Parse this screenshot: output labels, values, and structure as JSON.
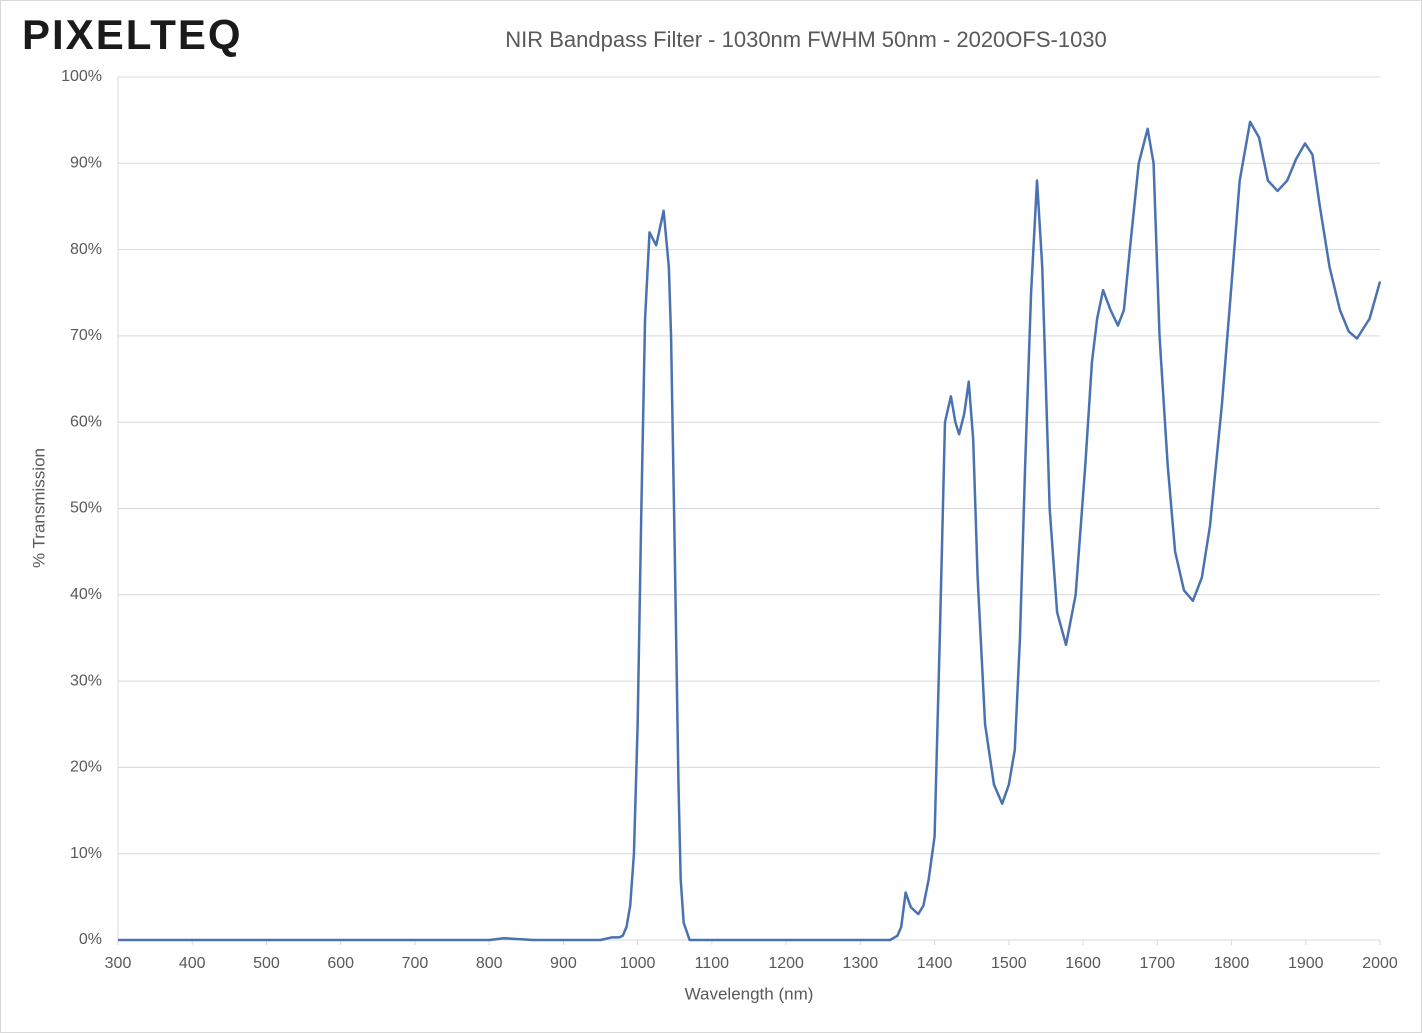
{
  "logo": "PIXELTEQ",
  "chart_data": {
    "type": "line",
    "title": "NIR Bandpass Filter - 1030nm FWHM 50nm - 2020OFS-1030",
    "x_label": "Wavelength (nm)",
    "y_label": "% Transmission",
    "color": "#4a72b0",
    "grid": true,
    "xlim": [
      300,
      2000
    ],
    "ylim": [
      0,
      100
    ],
    "xticks": [
      300,
      400,
      500,
      600,
      700,
      800,
      900,
      1000,
      1100,
      1200,
      1300,
      1400,
      1500,
      1600,
      1700,
      1800,
      1900,
      2000
    ],
    "yticks": [
      {
        "value": 0,
        "label": "0%"
      },
      {
        "value": 10,
        "label": "10%"
      },
      {
        "value": 20,
        "label": "20%"
      },
      {
        "value": 30,
        "label": "30%"
      },
      {
        "value": 40,
        "label": "40%"
      },
      {
        "value": 50,
        "label": "50%"
      },
      {
        "value": 60,
        "label": "60%"
      },
      {
        "value": 70,
        "label": "70%"
      },
      {
        "value": 80,
        "label": "80%"
      },
      {
        "value": 90,
        "label": "90%"
      },
      {
        "value": 100,
        "label": "100%"
      }
    ],
    "x": [
      300,
      500,
      700,
      800,
      820,
      860,
      950,
      965,
      975,
      980,
      985,
      990,
      995,
      1000,
      1005,
      1010,
      1016,
      1025,
      1035,
      1042,
      1045,
      1050,
      1055,
      1058,
      1062,
      1070,
      1340,
      1350,
      1355,
      1361,
      1368,
      1378,
      1385,
      1392,
      1400,
      1407,
      1414,
      1422,
      1428,
      1433,
      1440,
      1446,
      1452,
      1458,
      1468,
      1480,
      1491,
      1500,
      1508,
      1515,
      1522,
      1530,
      1538,
      1545,
      1555,
      1565,
      1577,
      1590,
      1603,
      1612,
      1619,
      1627,
      1637,
      1647,
      1655,
      1663,
      1675,
      1687,
      1695,
      1703,
      1714,
      1724,
      1736,
      1748,
      1760,
      1771,
      1787,
      1800,
      1811,
      1825,
      1837,
      1849,
      1862,
      1875,
      1887,
      1899,
      1909,
      1919,
      1932,
      1946,
      1958,
      1969,
      1986,
      2000
    ],
    "values": [
      0,
      0,
      0,
      0,
      0.2,
      0,
      0,
      0.3,
      0.3,
      0.5,
      1.5,
      4,
      10,
      25,
      50,
      72,
      82,
      80.5,
      84.5,
      78,
      70,
      45,
      18,
      7,
      2,
      0,
      0,
      0.5,
      1.5,
      5.5,
      3.8,
      3,
      4,
      7,
      12,
      35,
      60,
      63,
      60,
      58.6,
      61,
      64.7,
      58,
      42,
      25,
      18,
      15.8,
      18,
      22,
      35,
      55,
      75,
      88,
      78,
      50,
      38,
      34.2,
      40,
      55,
      67,
      72,
      75.3,
      73,
      71.2,
      73,
      80,
      90,
      94,
      90,
      70,
      55,
      45,
      40.5,
      39.3,
      42,
      48,
      62,
      76,
      88,
      94.8,
      93,
      88,
      86.8,
      88,
      90.5,
      92.3,
      91,
      85,
      78,
      73,
      70.5,
      69.7,
      72,
      76.3
    ]
  }
}
